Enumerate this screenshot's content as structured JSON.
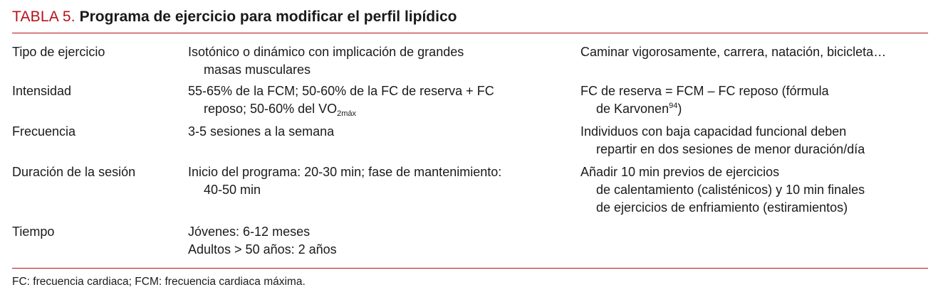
{
  "title": {
    "prefix": "TABLA 5.",
    "text": "Programa de ejercicio para modificar el perfil lipídico"
  },
  "rows": [
    {
      "label": "Tipo de ejercicio",
      "desc": [
        "Isotónico o dinámico con implicación de grandes",
        "masas musculares"
      ],
      "note": [
        "Caminar vigorosamente, carrera, natación, bicicleta…"
      ]
    },
    {
      "label": "Intensidad",
      "desc_line1": "55-65% de la FCM; 50-60% de la FC de reserva + FC",
      "desc_line2_text": "reposo; 50-60% del VO",
      "desc_line2_sub": "2máx",
      "note_line1": "FC de reserva = FCM – FC reposo (fórmula",
      "note_line2_text": "de Karvonen",
      "note_line2_sup": "94",
      "note_line2_end": ")"
    },
    {
      "label": "Frecuencia",
      "desc": [
        "3-5 sesiones a la semana"
      ],
      "note": [
        "Individuos con baja capacidad funcional deben",
        "repartir en dos sesiones de menor duración/día"
      ]
    },
    {
      "label": "Duración de la sesión",
      "desc": [
        "Inicio del programa: 20-30 min; fase de mantenimiento:",
        "40-50 min"
      ],
      "note": [
        "Añadir 10 min previos de ejercicios",
        "de calentamiento (calisténicos) y 10 min finales",
        "de ejercicios de enfriamiento (estiramientos)"
      ]
    },
    {
      "label": "Tiempo",
      "desc": [
        "Jóvenes: 6-12 meses",
        "Adultos > 50 años: 2 años"
      ],
      "note": []
    }
  ],
  "footnote": "FC: frecuencia cardiaca; FCM: frecuencia cardiaca máxima.",
  "colors": {
    "accent": "#b5121b",
    "text": "#1a1a1a"
  }
}
